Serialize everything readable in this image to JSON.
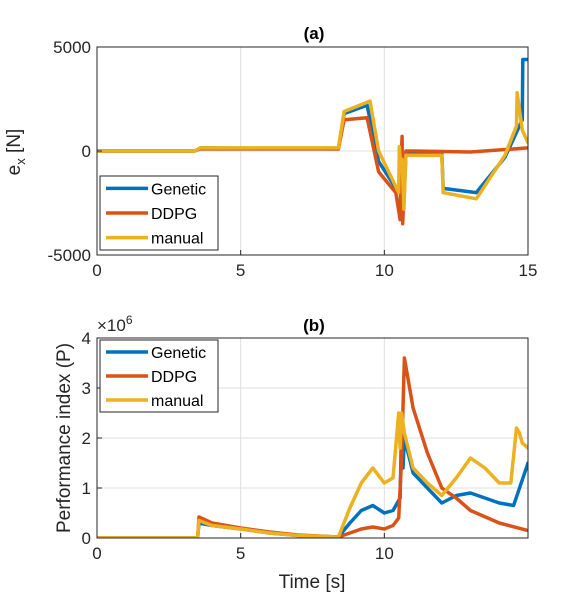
{
  "colors": {
    "Genetic": "#0072bd",
    "DDPG": "#d95319",
    "manual": "#edb120"
  },
  "chart_data": [
    {
      "type": "line",
      "title": "(a)",
      "xlabel": "",
      "ylabel": "e_x [N]",
      "xlim": [
        0,
        15
      ],
      "ylim": [
        -5000,
        5000
      ],
      "xticks": [
        0,
        5,
        10,
        15
      ],
      "yticks": [
        -5000,
        0,
        5000
      ],
      "xtick_labels": [
        "0",
        "5",
        "10",
        "15"
      ],
      "ytick_labels": [
        "-5000",
        "0",
        "5000"
      ],
      "grid": true,
      "legend": "bottom-left",
      "series": [
        {
          "name": "Genetic",
          "x": [
            0,
            3.4,
            3.6,
            8.4,
            8.6,
            9.4,
            9.8,
            10.5,
            10.55,
            10.6,
            10.62,
            10.68,
            10.75,
            12,
            12.05,
            13.2,
            14.2,
            14.8,
            14.82,
            15
          ],
          "y": [
            0,
            0,
            150,
            100,
            1800,
            2200,
            -500,
            -2000,
            -200,
            -300,
            -400,
            -2500,
            -100,
            -100,
            -1800,
            -2000,
            -300,
            1500,
            4400,
            4400
          ]
        },
        {
          "name": "DDPG",
          "x": [
            0,
            3.4,
            3.6,
            8.4,
            8.6,
            9.4,
            9.8,
            10.4,
            10.55,
            10.58,
            10.62,
            10.64,
            10.7,
            10.75,
            11,
            13,
            15
          ],
          "y": [
            0,
            0,
            100,
            100,
            1500,
            1600,
            -1000,
            -2000,
            -3300,
            -600,
            700,
            -3500,
            -1600,
            0,
            0,
            -50,
            150
          ]
        },
        {
          "name": "manual",
          "x": [
            0,
            3.4,
            3.6,
            8.4,
            8.6,
            9.5,
            9.8,
            10.5,
            10.52,
            10.55,
            10.6,
            10.62,
            10.68,
            10.75,
            12,
            12.05,
            13.2,
            14.2,
            14.6,
            14.62,
            14.8,
            15
          ],
          "y": [
            0,
            0,
            150,
            150,
            1900,
            2400,
            0,
            -2000,
            200,
            -300,
            -1000,
            -400,
            -2800,
            -200,
            -200,
            -2000,
            -2300,
            -200,
            1200,
            2800,
            1000,
            400
          ]
        }
      ]
    },
    {
      "type": "line",
      "title": "(b)",
      "xlabel": "Time [s]",
      "ylabel": "Performance index (P)",
      "exponent_label": "×10",
      "exponent_power": "6",
      "xlim": [
        0,
        15
      ],
      "ylim": [
        0,
        4
      ],
      "xticks": [
        0,
        5,
        10
      ],
      "yticks": [
        0,
        1,
        2,
        3,
        4
      ],
      "xtick_labels": [
        "0",
        "5",
        "10"
      ],
      "ytick_labels": [
        "0",
        "1",
        "2",
        "3",
        "4"
      ],
      "grid": true,
      "legend": "top-left",
      "series": [
        {
          "name": "Genetic",
          "x": [
            0,
            3.5,
            3.55,
            4,
            5,
            6,
            7,
            8.4,
            8.8,
            9.2,
            9.6,
            10,
            10.3,
            10.55,
            10.6,
            10.65,
            10.7,
            11,
            11.5,
            12,
            12.5,
            13,
            13.5,
            14,
            14.5,
            15
          ],
          "y": [
            0,
            0,
            0.3,
            0.25,
            0.18,
            0.1,
            0.05,
            0.02,
            0.3,
            0.55,
            0.65,
            0.5,
            0.55,
            0.8,
            2.2,
            1.4,
            2.0,
            1.3,
            1.0,
            0.7,
            0.85,
            0.9,
            0.8,
            0.7,
            0.65,
            1.5
          ]
        },
        {
          "name": "DDPG",
          "x": [
            0,
            3.5,
            3.55,
            4,
            5,
            6,
            7,
            8.4,
            8.8,
            9.2,
            9.6,
            10,
            10.3,
            10.5,
            10.6,
            10.7,
            11,
            11.5,
            12,
            12.5,
            13,
            14,
            15
          ],
          "y": [
            0,
            0,
            0.42,
            0.3,
            0.2,
            0.12,
            0.06,
            0.02,
            0.1,
            0.18,
            0.22,
            0.18,
            0.25,
            0.4,
            1.6,
            3.6,
            2.6,
            1.7,
            1.0,
            0.8,
            0.55,
            0.3,
            0.15
          ]
        },
        {
          "name": "manual",
          "x": [
            0,
            3.5,
            3.55,
            4,
            5,
            6,
            7,
            8.4,
            8.8,
            9.2,
            9.6,
            10,
            10.3,
            10.5,
            10.55,
            10.6,
            10.7,
            11,
            11.5,
            12,
            12.5,
            13,
            13.5,
            14,
            14.4,
            14.6,
            14.7,
            14.8,
            15
          ],
          "y": [
            0,
            0,
            0.35,
            0.25,
            0.18,
            0.1,
            0.05,
            0.02,
            0.6,
            1.1,
            1.4,
            1.1,
            1.2,
            2.5,
            1.8,
            2.5,
            2.1,
            1.4,
            1.1,
            0.85,
            1.2,
            1.6,
            1.4,
            1.1,
            1.1,
            2.2,
            2.1,
            1.9,
            1.8
          ]
        }
      ]
    }
  ]
}
